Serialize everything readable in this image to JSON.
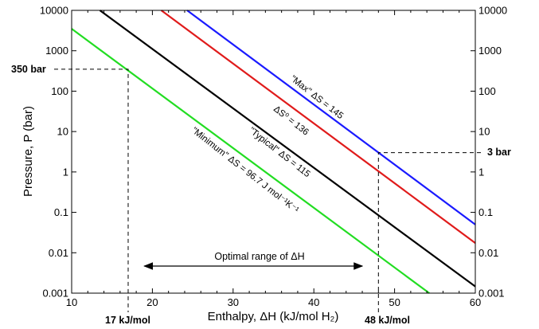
{
  "chart_data": {
    "type": "line",
    "xlabel": "Enthalpy, ΔH (kJ/mol H₂)",
    "ylabel": "Pressure, P (bar)",
    "xlim": [
      10,
      60
    ],
    "ylim": [
      0.001,
      10000
    ],
    "yscale": "log",
    "x_ticks": [
      "10",
      "20",
      "30",
      "40",
      "50",
      "60"
    ],
    "y_ticks": [
      "0.001",
      "0.01",
      "0.1",
      "1",
      "10",
      "100",
      "1000",
      "10000"
    ],
    "grid": false,
    "series": [
      {
        "label": "\"Max\" ΔS = 145",
        "color": "#1a1aff",
        "x": [
          24.3,
          60
        ],
        "y": [
          10000,
          0.05
        ]
      },
      {
        "label": "ΔS⁰ = 136",
        "color": "#e01b1b",
        "x": [
          21.1,
          60
        ],
        "y": [
          10000,
          0.0174
        ]
      },
      {
        "label": "\"Typical\" ΔS = 115",
        "color": "#000000",
        "x": [
          13.5,
          60
        ],
        "y": [
          10000,
          0.00146
        ]
      },
      {
        "label": "\"Minimum\" ΔS = 96.7 J mol⁻¹K⁻¹",
        "color": "#22dd22",
        "x": [
          10,
          54.3
        ],
        "y": [
          3500,
          0.001
        ]
      }
    ],
    "annotations": {
      "p350": "350 bar",
      "p3": "3 bar",
      "h17": "17 kJ/mol",
      "h48": "48 kJ/mol",
      "optimal_range": "Optimal range of ΔH"
    },
    "marker_values": {
      "p350_pressure": 350,
      "p350_enthalpy": 17,
      "p3_pressure": 3,
      "p3_enthalpy": 48,
      "optimal_range_from": 19,
      "optimal_range_to": 46
    }
  }
}
